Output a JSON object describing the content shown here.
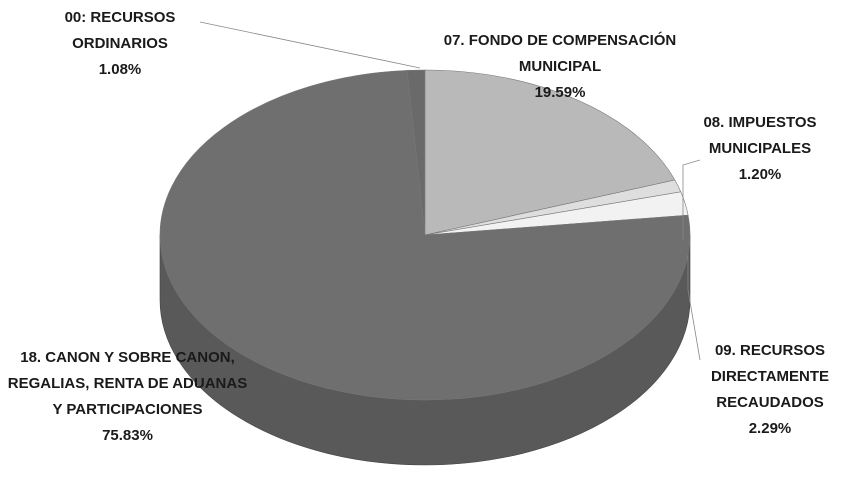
{
  "chart_data": {
    "type": "pie",
    "categories": [
      "00: RECURSOS ORDINARIOS",
      "07. FONDO DE COMPENSACIÓN MUNICIPAL",
      "08. IMPUESTOS MUNICIPALES",
      "09. RECURSOS DIRECTAMENTE RECAUDADOS",
      "18. CANON Y SOBRE CANON, REGALIAS, RENTA DE ADUANAS Y PARTICIPACIONES"
    ],
    "values": [
      1.08,
      19.59,
      1.2,
      2.29,
      75.83
    ],
    "value_labels": [
      "1.08%",
      "19.59%",
      "1.20%",
      "2.29%",
      "75.83%"
    ],
    "colors": [
      "#6a6a6a",
      "#b9b9b9",
      "#dedede",
      "#f2f2f2",
      "#6f6f6f"
    ]
  }
}
